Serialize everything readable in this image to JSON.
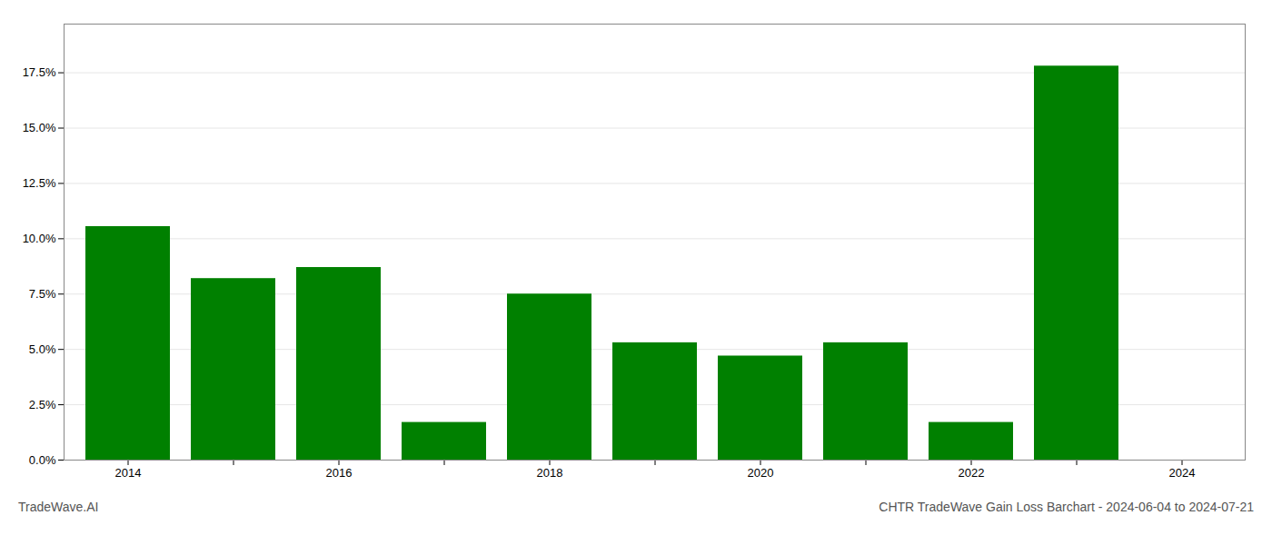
{
  "chart_data": {
    "type": "bar",
    "title": "CHTR TradeWave Gain Loss Barchart - 2024-06-04 to 2024-07-21",
    "annotations": [
      {
        "text": "TradeWave.AI"
      }
    ],
    "categories": [
      "2014",
      null,
      "2016",
      null,
      "2018",
      null,
      "2020",
      null,
      "2022",
      null,
      "2024"
    ],
    "values": [
      0.1055,
      0.082,
      0.087,
      0.017,
      0.075,
      0.053,
      0.047,
      0.053,
      0.017,
      0.178,
      0.0
    ],
    "color": "#008000",
    "ylim": [
      0,
      0.197
    ],
    "yticks": [
      0,
      {
        "value": 0.0,
        "label": "0.0%"
      },
      {
        "value": 0.025,
        "label": "2.5%"
      },
      {
        "value": 0.05,
        "label": "5.0%"
      },
      {
        "value": 0.075,
        "label": "7.5%"
      },
      {
        "value": 0.1,
        "label": "10.0%"
      },
      {
        "value": 0.125,
        "label": "12.5%"
      },
      {
        "value": 0.15,
        "label": "15.0%"
      },
      {
        "value": 0.175,
        "label": "17.5%"
      }
    ],
    "grid": true
  }
}
